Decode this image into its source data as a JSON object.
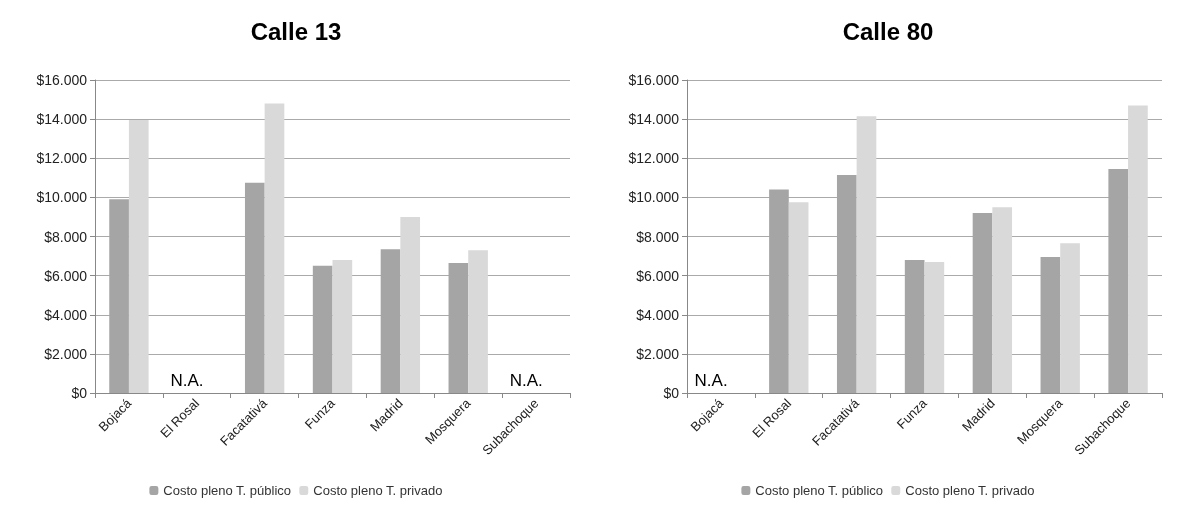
{
  "chart_data": [
    {
      "type": "bar",
      "title": "Calle 13",
      "categories": [
        "Bojacá",
        "El Rosal",
        "Facatativá",
        "Funza",
        "Madrid",
        "Mosquera",
        "Subachoque"
      ],
      "series": [
        {
          "name": "Costo pleno T. público",
          "color": "#a5a5a5",
          "values": [
            9900,
            null,
            10750,
            6500,
            7350,
            6650,
            null
          ]
        },
        {
          "name": "Costo pleno T. privado",
          "color": "#d9d9d9",
          "values": [
            13950,
            null,
            14800,
            6800,
            9000,
            7300,
            null
          ]
        }
      ],
      "ylim": [
        0,
        16000
      ],
      "yticks": [
        {
          "value": 0,
          "label": "$0"
        },
        {
          "value": 2000,
          "label": "$2.000"
        },
        {
          "value": 4000,
          "label": "$4.000"
        },
        {
          "value": 6000,
          "label": "$6.000"
        },
        {
          "value": 8000,
          "label": "$8.000"
        },
        {
          "value": 10000,
          "label": "$10.000"
        },
        {
          "value": 12000,
          "label": "$12.000"
        },
        {
          "value": 14000,
          "label": "$14.000"
        },
        {
          "value": 16000,
          "label": "$16.000"
        }
      ],
      "annotations": [
        "N.A.",
        "N.A."
      ],
      "grid": "y",
      "legend": "bottom"
    },
    {
      "type": "bar",
      "title": "Calle 80",
      "categories": [
        "Bojacá",
        "El Rosal",
        "Facatativá",
        "Funza",
        "Madrid",
        "Mosquera",
        "Subachoque"
      ],
      "series": [
        {
          "name": "Costo pleno T. público",
          "color": "#a5a5a5",
          "values": [
            null,
            10400,
            11150,
            6800,
            9200,
            6950,
            11450
          ]
        },
        {
          "name": "Costo pleno T. privado",
          "color": "#d9d9d9",
          "values": [
            null,
            9750,
            14150,
            6700,
            9500,
            7650,
            14700
          ]
        }
      ],
      "ylim": [
        0,
        16000
      ],
      "yticks": [
        {
          "value": 0,
          "label": "$0"
        },
        {
          "value": 2000,
          "label": "$2.000"
        },
        {
          "value": 4000,
          "label": "$4.000"
        },
        {
          "value": 6000,
          "label": "$6.000"
        },
        {
          "value": 8000,
          "label": "$8.000"
        },
        {
          "value": 10000,
          "label": "$10.000"
        },
        {
          "value": 12000,
          "label": "$12.000"
        },
        {
          "value": 14000,
          "label": "$14.000"
        },
        {
          "value": 16000,
          "label": "$16.000"
        }
      ],
      "annotations": [
        "N.A."
      ],
      "grid": "y",
      "legend": "bottom"
    }
  ]
}
